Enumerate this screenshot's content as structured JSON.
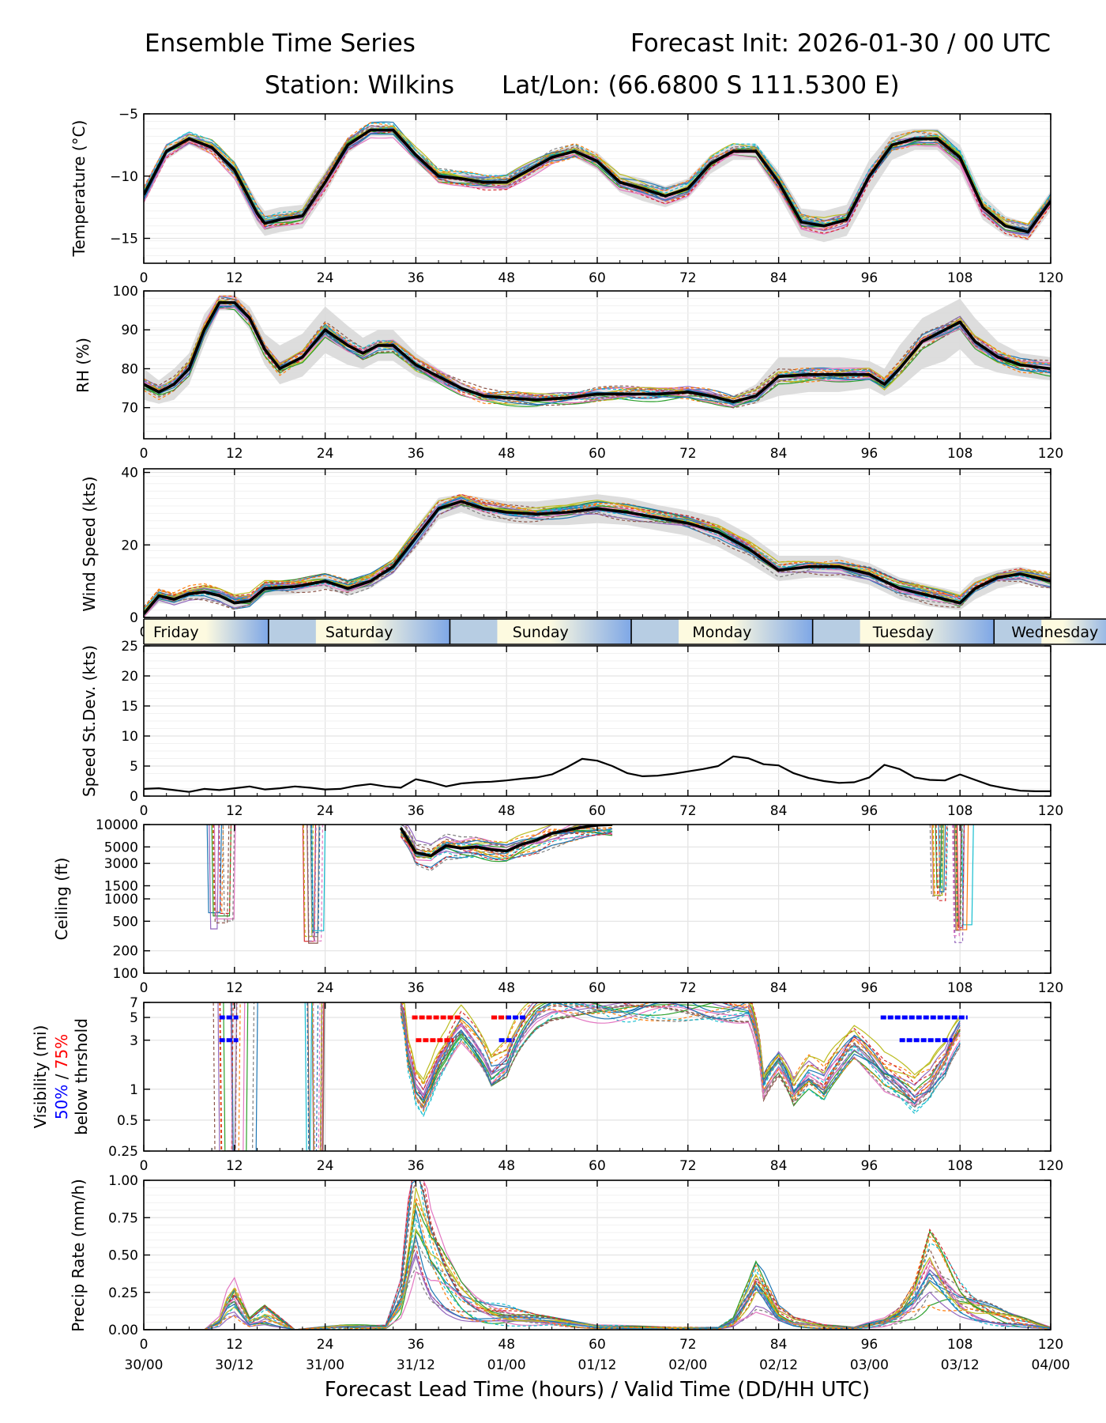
{
  "title": {
    "left": "Ensemble Time Series",
    "right": "Forecast Init: 2026-01-30 / 00 UTC",
    "station": "Station: Wilkins",
    "latlon": "Lat/Lon: (66.6800 S 111.5300 E)"
  },
  "x_axis": {
    "label": "Forecast Lead Time (hours) / Valid Time (DD/HH UTC)",
    "hours": [
      "0",
      "12",
      "24",
      "36",
      "48",
      "60",
      "72",
      "84",
      "96",
      "108",
      "120"
    ],
    "valid_times": [
      "30/00",
      "30/12",
      "31/00",
      "31/12",
      "01/00",
      "01/12",
      "02/00",
      "02/12",
      "03/00",
      "03/12",
      "04/00"
    ],
    "range": [
      0,
      120
    ]
  },
  "day_strip": [
    "Friday",
    "Saturday",
    "Sunday",
    "Monday",
    "Tuesday",
    "Wednesday"
  ],
  "day_boundaries_hours": [
    16.5,
    40.5,
    64.5,
    88.5,
    112.5
  ],
  "visibility_label_parts": {
    "line1": "Visibility (mi)",
    "p50": "50%",
    "slash": " / ",
    "p75": "75%",
    "line3": "below thrshold"
  },
  "chart_data": [
    {
      "type": "line",
      "title": "",
      "ylabel": "Temperature (°C)",
      "ylim": [
        -17,
        -5
      ],
      "yscale": "linear",
      "yticks": [
        -15,
        -10,
        -5
      ],
      "ytick_labels": [
        "−15",
        "−10",
        "−5"
      ],
      "x": [
        0,
        3,
        6,
        9,
        12,
        15,
        16,
        18,
        21,
        24,
        27,
        30,
        33,
        36,
        39,
        42,
        45,
        48,
        51,
        54,
        57,
        60,
        63,
        66,
        69,
        72,
        75,
        78,
        81,
        84,
        87,
        90,
        93,
        96,
        99,
        102,
        105,
        108,
        111,
        114,
        117,
        120
      ],
      "series": [
        {
          "name": "ensemble mean",
          "values": [
            -11.5,
            -8.0,
            -7.0,
            -7.7,
            -9.5,
            -13.0,
            -13.8,
            -13.5,
            -13.2,
            -10.5,
            -7.5,
            -6.3,
            -6.3,
            -8.3,
            -10.0,
            -10.2,
            -10.5,
            -10.5,
            -9.5,
            -8.5,
            -8.0,
            -8.8,
            -10.5,
            -11.0,
            -11.6,
            -11.0,
            -9.0,
            -8.0,
            -8.0,
            -10.5,
            -13.7,
            -14.0,
            -13.5,
            -10.0,
            -7.5,
            -7.0,
            -7.0,
            -8.5,
            -12.5,
            -14.0,
            -14.5,
            -12.0
          ]
        }
      ],
      "spread_low": [
        -12.2,
        -8.7,
        -7.5,
        -8.3,
        -10.3,
        -14.0,
        -14.8,
        -14.5,
        -14.2,
        -11.5,
        -8.2,
        -6.8,
        -6.8,
        -8.9,
        -10.5,
        -10.8,
        -11.0,
        -11.1,
        -10.1,
        -9.0,
        -8.5,
        -9.5,
        -11.3,
        -12.0,
        -12.5,
        -11.8,
        -9.8,
        -8.7,
        -8.7,
        -11.5,
        -14.8,
        -15.3,
        -14.8,
        -11.5,
        -8.7,
        -7.9,
        -7.9,
        -9.6,
        -13.5,
        -14.8,
        -15.2,
        -12.8
      ],
      "spread_high": [
        -10.8,
        -7.4,
        -6.6,
        -7.2,
        -8.8,
        -12.0,
        -12.8,
        -12.5,
        -12.3,
        -9.6,
        -6.9,
        -5.9,
        -5.9,
        -7.7,
        -9.5,
        -9.7,
        -10.0,
        -9.9,
        -8.9,
        -8.0,
        -7.5,
        -8.1,
        -9.8,
        -10.2,
        -10.8,
        -10.2,
        -8.3,
        -7.4,
        -7.4,
        -9.6,
        -12.6,
        -12.8,
        -12.3,
        -8.7,
        -6.5,
        -6.2,
        -6.2,
        -7.5,
        -11.5,
        -13.2,
        -13.8,
        -11.2
      ]
    },
    {
      "type": "line",
      "ylabel": "RH (%)",
      "ylim": [
        62,
        100
      ],
      "yscale": "linear",
      "yticks": [
        70,
        80,
        90,
        100
      ],
      "ytick_labels": [
        "70",
        "80",
        "90",
        "100"
      ],
      "x": [
        0,
        2,
        4,
        6,
        8,
        10,
        12,
        14,
        16,
        18,
        21,
        24,
        27,
        29,
        31,
        33,
        36,
        39,
        42,
        45,
        48,
        52,
        56,
        60,
        64,
        68,
        72,
        75,
        78,
        81,
        84,
        88,
        92,
        96,
        98,
        100,
        103,
        106,
        108,
        110,
        113,
        116,
        120
      ],
      "series": [
        {
          "name": "ensemble mean",
          "values": [
            76,
            74,
            76,
            80,
            90,
            97,
            97,
            93,
            85,
            80,
            83,
            90,
            86,
            84,
            86,
            86,
            81,
            78,
            75,
            73,
            72.5,
            72,
            72.5,
            73.5,
            73.5,
            73.5,
            74,
            73,
            71.5,
            73,
            78,
            78.5,
            78.5,
            78.5,
            76,
            80,
            87,
            90,
            92,
            87,
            83,
            81,
            80
          ]
        }
      ],
      "spread_low": [
        72,
        71,
        72,
        76,
        86,
        95,
        95,
        90,
        81,
        76,
        78,
        84,
        81,
        80,
        82,
        82,
        78,
        76,
        74,
        72,
        71.5,
        71.2,
        71.6,
        72.6,
        72.6,
        72.6,
        73,
        72,
        70.5,
        71,
        73,
        74,
        74,
        75,
        73,
        75,
        80,
        82,
        85,
        81,
        79,
        78,
        77
      ],
      "spread_high": [
        80,
        77,
        80,
        84,
        94,
        99,
        99,
        96,
        89,
        86,
        89,
        96,
        91,
        88,
        90,
        90,
        84,
        80,
        76.5,
        74,
        73.5,
        73,
        73.5,
        74.5,
        74.5,
        74.5,
        75,
        74,
        73,
        76,
        83,
        83,
        83,
        82,
        80,
        86,
        93,
        96,
        98,
        93,
        87,
        84,
        83
      ]
    },
    {
      "type": "line",
      "ylabel": "Wind Speed (kts)",
      "ylim": [
        0,
        41
      ],
      "yscale": "linear",
      "yticks": [
        0,
        20,
        40
      ],
      "ytick_labels": [
        "0",
        "20",
        "40"
      ],
      "x": [
        0,
        2,
        4,
        6,
        8,
        10,
        12,
        14,
        16,
        20,
        24,
        27,
        30,
        33,
        36,
        39,
        42,
        45,
        48,
        52,
        56,
        60,
        64,
        68,
        72,
        76,
        80,
        84,
        88,
        92,
        96,
        100,
        104,
        108,
        110,
        113,
        116,
        120
      ],
      "series": [
        {
          "name": "ensemble mean",
          "values": [
            1,
            6,
            5,
            6.5,
            7,
            6,
            4,
            4.5,
            8,
            8.5,
            10,
            8,
            10,
            14,
            22,
            30,
            32,
            30,
            29,
            28.5,
            29,
            30,
            29,
            27.5,
            26,
            23.5,
            19,
            13,
            14,
            14,
            12,
            8,
            6,
            4,
            8,
            11,
            12,
            10
          ]
        }
      ],
      "spread_low": [
        0,
        4,
        3.5,
        5,
        5.5,
        4.5,
        2.5,
        3,
        6,
        6.5,
        8,
        6,
        8,
        12,
        19,
        27,
        29,
        27,
        26,
        25.5,
        25.5,
        26,
        25.5,
        24,
        22.5,
        19.5,
        15,
        10,
        11,
        11,
        9,
        5,
        3,
        2,
        5,
        8,
        9.5,
        8
      ],
      "spread_high": [
        2,
        8,
        6.5,
        8,
        8.5,
        7.5,
        5.5,
        6,
        10,
        10.5,
        12,
        10,
        12,
        16,
        25,
        33,
        34,
        33,
        32,
        32,
        33,
        34,
        33,
        31,
        29.5,
        27.5,
        23,
        17,
        17,
        17,
        15,
        11,
        9,
        7,
        11,
        13,
        14,
        12
      ]
    },
    {
      "type": "line",
      "ylabel": "Speed St.Dev. (kts)",
      "ylim": [
        0,
        25
      ],
      "yscale": "linear",
      "yticks": [
        0,
        5,
        10,
        15,
        20,
        25
      ],
      "ytick_labels": [
        "0",
        "5",
        "10",
        "15",
        "20",
        "25"
      ],
      "x": [
        0,
        2,
        4,
        6,
        8,
        10,
        12,
        14,
        16,
        18,
        20,
        22,
        24,
        26,
        28,
        30,
        32,
        34,
        36,
        38,
        40,
        42,
        44,
        46,
        48,
        50,
        52,
        54,
        56,
        58,
        60,
        62,
        64,
        66,
        68,
        70,
        72,
        74,
        76,
        78,
        80,
        82,
        84,
        86,
        88,
        90,
        92,
        94,
        96,
        98,
        100,
        102,
        104,
        106,
        108,
        110,
        112,
        114,
        116,
        118,
        120
      ],
      "series": [
        {
          "name": "std dev",
          "values": [
            1.2,
            1.3,
            1.0,
            0.7,
            1.2,
            1.0,
            1.3,
            1.6,
            1.1,
            1.3,
            1.6,
            1.4,
            1.1,
            1.2,
            1.7,
            2.0,
            1.6,
            1.4,
            2.8,
            2.3,
            1.6,
            2.1,
            2.3,
            2.4,
            2.6,
            2.9,
            3.1,
            3.6,
            4.8,
            6.2,
            5.9,
            5.0,
            3.8,
            3.3,
            3.4,
            3.7,
            4.1,
            4.5,
            5.0,
            6.6,
            6.3,
            5.3,
            5.1,
            3.8,
            3.0,
            2.5,
            2.2,
            2.3,
            3.1,
            5.2,
            4.5,
            3.1,
            2.7,
            2.6,
            3.6,
            2.7,
            1.8,
            1.3,
            0.9,
            0.8,
            0.8
          ]
        }
      ]
    },
    {
      "type": "line",
      "ylabel": "Ceiling (ft)",
      "ylim": [
        100,
        10000
      ],
      "yscale": "log",
      "yticks": [
        100,
        200,
        500,
        1000,
        1500,
        3000,
        5000,
        10000
      ],
      "ytick_labels": [
        "100",
        "200",
        "500",
        "1000",
        "1500",
        "3000",
        "5000",
        "10000"
      ],
      "x": [
        34,
        36,
        38,
        40,
        42,
        44,
        46,
        48,
        50,
        52,
        54,
        56,
        58,
        60,
        62
      ],
      "series": [
        {
          "name": "ensemble mean",
          "values": [
            9000,
            4200,
            3800,
            5200,
            4800,
            5000,
            4600,
            4400,
            5400,
            6200,
            7600,
            8400,
            9200,
            9800,
            10000
          ]
        }
      ],
      "drop_events": [
        {
          "start": 8,
          "end": 13,
          "min": 400
        },
        {
          "start": 21,
          "end": 24,
          "min": 250
        },
        {
          "start": 104,
          "end": 107,
          "min": 900
        },
        {
          "start": 107,
          "end": 110,
          "min": 280
        }
      ]
    },
    {
      "type": "line",
      "ylabel": "Visibility (mi) 50% / 75% below thrshold",
      "ylim": [
        0.25,
        7
      ],
      "yscale": "log",
      "yticks": [
        0.25,
        0.5,
        1,
        3,
        5,
        7
      ],
      "ytick_labels": [
        "0.25",
        "0.5",
        "1",
        "3",
        "5",
        "7"
      ],
      "x": [
        34,
        35,
        36,
        37,
        38,
        40,
        42,
        44,
        46,
        48,
        50,
        52,
        54,
        80,
        82,
        84,
        86,
        88,
        90,
        92,
        94,
        96,
        98,
        100,
        102,
        104,
        106,
        108
      ],
      "series": [
        {
          "name": "ensemble member",
          "values": [
            7,
            2,
            1.0,
            0.8,
            1.2,
            2.5,
            4.5,
            3.0,
            1.6,
            2.0,
            4.0,
            6.0,
            7,
            7,
            1.2,
            2.0,
            1.0,
            1.5,
            1.2,
            2.0,
            3.0,
            2.2,
            1.5,
            1.2,
            0.9,
            1.2,
            2.0,
            4.0
          ]
        }
      ],
      "drop_events": [
        {
          "start": 9,
          "end": 15
        },
        {
          "start": 21,
          "end": 24.5
        }
      ],
      "thresholds": [
        {
          "name": "50% below threshold",
          "color": "#0000ff",
          "segments": [
            {
              "level": 5,
              "start": 10,
              "end": 12.5
            },
            {
              "level": 3,
              "start": 10,
              "end": 12.5
            },
            {
              "level": 5,
              "start": 46,
              "end": 50.5
            },
            {
              "level": 3,
              "start": 47,
              "end": 49
            },
            {
              "level": 5,
              "start": 97.5,
              "end": 109
            },
            {
              "level": 3,
              "start": 100,
              "end": 107
            }
          ]
        },
        {
          "name": "75% below threshold",
          "color": "#ff0000",
          "segments": [
            {
              "level": 5,
              "start": 35.5,
              "end": 42
            },
            {
              "level": 3,
              "start": 36,
              "end": 41
            },
            {
              "level": 5,
              "start": 46,
              "end": 48
            }
          ]
        }
      ]
    },
    {
      "type": "line",
      "ylabel": "Precip Rate (mm/h)",
      "ylim": [
        0,
        1
      ],
      "yscale": "linear",
      "yticks": [
        0,
        0.25,
        0.5,
        0.75,
        1
      ],
      "ytick_labels": [
        "0.00",
        "0.25",
        "0.50",
        "0.75",
        "1.00"
      ],
      "x": [
        0,
        8,
        10,
        11,
        12,
        13,
        14,
        16,
        20,
        26,
        32,
        34,
        35,
        36,
        37,
        38,
        40,
        42,
        44,
        46,
        48,
        52,
        56,
        60,
        70,
        76,
        78,
        80,
        81,
        82,
        84,
        86,
        90,
        94,
        98,
        100,
        102,
        103,
        104,
        106,
        108,
        110,
        114,
        118,
        120
      ],
      "series": [
        {
          "name": "ensemble member",
          "values": [
            0,
            0,
            0.05,
            0.15,
            0.2,
            0.12,
            0.05,
            0.1,
            0,
            0.02,
            0.02,
            0.2,
            0.5,
            0.8,
            0.6,
            0.45,
            0.3,
            0.2,
            0.15,
            0.12,
            0.1,
            0.06,
            0.04,
            0.02,
            0.01,
            0.01,
            0.05,
            0.2,
            0.3,
            0.25,
            0.1,
            0.05,
            0.02,
            0.01,
            0.05,
            0.1,
            0.2,
            0.3,
            0.4,
            0.3,
            0.2,
            0.15,
            0.08,
            0.03,
            0.01
          ]
        }
      ]
    }
  ],
  "colors": {
    "mean_line": "#000000",
    "spread_fill": "#d9d9d9",
    "grid": "#e3e3e3",
    "p50": "#0000ff",
    "p75": "#ff0000",
    "day_band_light": "#fdfae0",
    "day_band_blue": "#7ea7e6"
  },
  "member_palette": [
    "#1f77b4",
    "#ff7f0e",
    "#2ca02c",
    "#d62728",
    "#9467bd",
    "#8c564b",
    "#e377c2",
    "#7f7f7f",
    "#bcbd22",
    "#17becf"
  ]
}
